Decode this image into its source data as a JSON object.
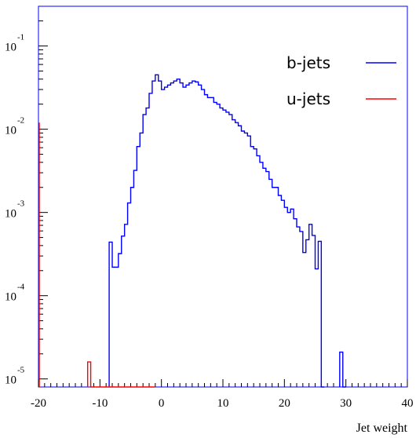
{
  "chart_data": {
    "type": "line",
    "style": "step-histogram",
    "title": "",
    "xlabel": "Jet weight",
    "ylabel": "",
    "xlim": [
      -20,
      40
    ],
    "ylim": [
      8e-06,
      0.3
    ],
    "yscale": "log",
    "grid": false,
    "legend_position": "top-right",
    "x_ticks": [
      {
        "value": -20,
        "label": "-20"
      },
      {
        "value": -10,
        "label": "-10"
      },
      {
        "value": 0,
        "label": "0"
      },
      {
        "value": 10,
        "label": "10"
      },
      {
        "value": 20,
        "label": "20"
      },
      {
        "value": 30,
        "label": "30"
      },
      {
        "value": 40,
        "label": "40"
      }
    ],
    "y_ticks": [
      {
        "value": 0.1,
        "base": "10",
        "exponent": "-1"
      },
      {
        "value": 0.01,
        "base": "10",
        "exponent": "-2"
      },
      {
        "value": 0.001,
        "base": "10",
        "exponent": "-3"
      },
      {
        "value": 0.0001,
        "base": "10",
        "exponent": "-4"
      },
      {
        "value": 1e-05,
        "base": "10",
        "exponent": "-5"
      }
    ],
    "series": [
      {
        "name": "b-jets",
        "color": "#0000ff",
        "points": [
          [
            -8.5,
            0.00044
          ],
          [
            -8.0,
            0.00022
          ],
          [
            -7.5,
            0.00022
          ],
          [
            -7.0,
            0.00032
          ],
          [
            -6.5,
            0.00052
          ],
          [
            -6.0,
            0.00072
          ],
          [
            -5.5,
            0.0013
          ],
          [
            -5.0,
            0.002
          ],
          [
            -4.5,
            0.0032
          ],
          [
            -4.0,
            0.0062
          ],
          [
            -3.5,
            0.009
          ],
          [
            -3.0,
            0.015
          ],
          [
            -2.5,
            0.018
          ],
          [
            -2.0,
            0.027
          ],
          [
            -1.5,
            0.038
          ],
          [
            -1.0,
            0.045
          ],
          [
            -0.5,
            0.038
          ],
          [
            0.0,
            0.03
          ],
          [
            0.5,
            0.032
          ],
          [
            1.0,
            0.034
          ],
          [
            1.5,
            0.036
          ],
          [
            2.0,
            0.038
          ],
          [
            2.5,
            0.04
          ],
          [
            3.0,
            0.036
          ],
          [
            3.5,
            0.032
          ],
          [
            4.0,
            0.034
          ],
          [
            4.5,
            0.036
          ],
          [
            5.0,
            0.038
          ],
          [
            5.5,
            0.037
          ],
          [
            6.0,
            0.034
          ],
          [
            6.5,
            0.03
          ],
          [
            7.0,
            0.026
          ],
          [
            7.5,
            0.024
          ],
          [
            8.0,
            0.024
          ],
          [
            8.5,
            0.021
          ],
          [
            9.0,
            0.02
          ],
          [
            9.5,
            0.018
          ],
          [
            10.0,
            0.017
          ],
          [
            10.5,
            0.016
          ],
          [
            11.0,
            0.015
          ],
          [
            11.5,
            0.013
          ],
          [
            12.0,
            0.012
          ],
          [
            12.5,
            0.011
          ],
          [
            13.0,
            0.0095
          ],
          [
            13.5,
            0.009
          ],
          [
            14.0,
            0.0083
          ],
          [
            14.5,
            0.0062
          ],
          [
            15.0,
            0.0058
          ],
          [
            15.5,
            0.0048
          ],
          [
            16.0,
            0.004
          ],
          [
            16.5,
            0.0034
          ],
          [
            17.0,
            0.0031
          ],
          [
            17.5,
            0.0025
          ],
          [
            18.0,
            0.002
          ],
          [
            18.5,
            0.002
          ],
          [
            19.0,
            0.0016
          ],
          [
            19.5,
            0.0014
          ],
          [
            20.0,
            0.00115
          ],
          [
            20.5,
            0.001
          ],
          [
            21.0,
            0.0011
          ],
          [
            21.5,
            0.00084
          ],
          [
            22.0,
            0.00067
          ],
          [
            22.5,
            0.00059
          ],
          [
            23.0,
            0.00033
          ],
          [
            23.5,
            0.00047
          ],
          [
            24.0,
            0.00072
          ],
          [
            24.5,
            0.00053
          ],
          [
            25.0,
            0.00021
          ],
          [
            25.5,
            0.00045
          ],
          [
            26.0,
            4e-06
          ],
          [
            29.0,
            2.1e-05
          ],
          [
            29.5,
            4e-06
          ]
        ]
      },
      {
        "name": "u-jets",
        "color": "#ff0000",
        "points": [
          [
            -12.0,
            1.6e-05
          ],
          [
            -11.5,
            4e-06
          ],
          [
            -11.0,
            4e-06
          ],
          [
            -10.5,
            4e-06
          ],
          [
            -10.0,
            4e-06
          ],
          [
            -9.5,
            4e-06
          ],
          [
            -9.0,
            4e-06
          ],
          [
            -8.5,
            4e-06
          ],
          [
            -8.0,
            4e-06
          ],
          [
            -7.5,
            4e-06
          ],
          [
            -7.0,
            4e-06
          ],
          [
            -6.5,
            4e-06
          ],
          [
            -6.0,
            4e-06
          ],
          [
            -5.5,
            4e-06
          ],
          [
            -5.0,
            4e-06
          ],
          [
            -4.5,
            4e-06
          ],
          [
            -4.0,
            4e-06
          ],
          [
            -3.5,
            4e-06
          ],
          [
            -3.0,
            4e-06
          ],
          [
            -2.5,
            4e-06
          ],
          [
            -2.0,
            4e-06
          ],
          [
            -1.5,
            4e-06
          ]
        ]
      }
    ]
  },
  "legend": {
    "entries": [
      {
        "label": "b-jets",
        "color": "#0000ff"
      },
      {
        "label": "u-jets",
        "color": "#ff0000"
      }
    ]
  }
}
